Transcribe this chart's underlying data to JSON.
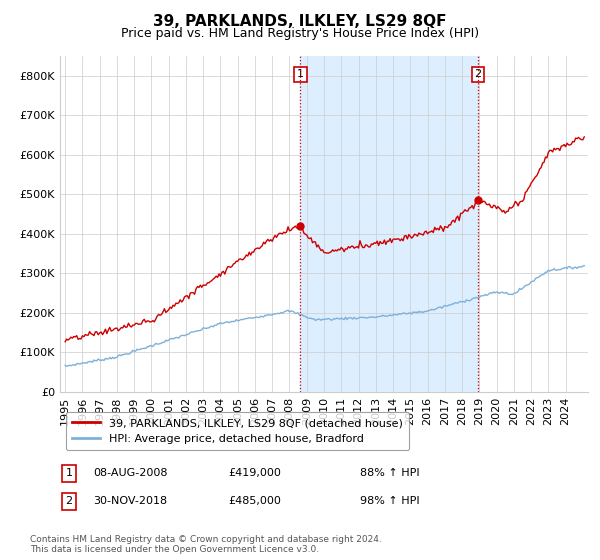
{
  "title": "39, PARKLANDS, ILKLEY, LS29 8QF",
  "subtitle": "Price paid vs. HM Land Registry's House Price Index (HPI)",
  "ylim": [
    0,
    850000
  ],
  "yticks": [
    0,
    100000,
    200000,
    300000,
    400000,
    500000,
    600000,
    700000,
    800000
  ],
  "ytick_labels": [
    "£0",
    "£100K",
    "£200K",
    "£300K",
    "£400K",
    "£500K",
    "£600K",
    "£700K",
    "£800K"
  ],
  "sale1_year": 2008.625,
  "sale1_price": 419000,
  "sale2_year": 2018.917,
  "sale2_price": 485000,
  "line1_color": "#cc0000",
  "line2_color": "#7fb0d8",
  "shade_color": "#ddeeff",
  "line1_label": "39, PARKLANDS, ILKLEY, LS29 8QF (detached house)",
  "line2_label": "HPI: Average price, detached house, Bradford",
  "footer": "Contains HM Land Registry data © Crown copyright and database right 2024.\nThis data is licensed under the Open Government Licence v3.0.",
  "background_color": "#ffffff",
  "grid_color": "#cccccc",
  "title_fontsize": 11,
  "subtitle_fontsize": 9,
  "tick_fontsize": 8
}
